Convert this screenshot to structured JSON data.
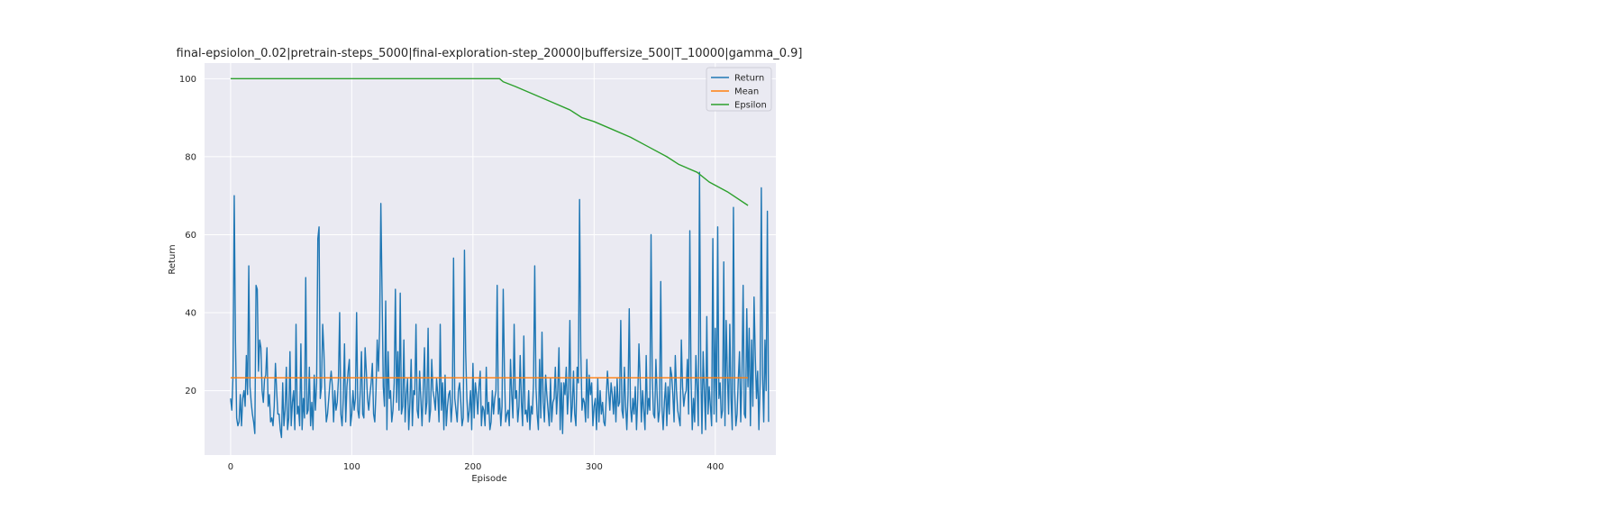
{
  "chart_data": {
    "type": "line",
    "title": "final-epsiolon_0.02|pretrain-steps_5000|final-exploration-step_20000|buffersize_500|T_10000|gamma_0.9]",
    "xlabel": "Episode",
    "ylabel": "Return",
    "xlim": [
      -21.5,
      450
    ],
    "ylim": [
      3.5,
      104
    ],
    "xticks": [
      0,
      100,
      200,
      300,
      400
    ],
    "yticks": [
      20,
      40,
      60,
      80,
      100
    ],
    "grid": true,
    "legend_position": "top-right",
    "colors": {
      "background": "#eaeaf2",
      "grid": "#ffffff",
      "return": "#1f77b4",
      "mean": "#ff7f0e",
      "epsilon": "#2ca02c"
    },
    "series": [
      {
        "name": "Return",
        "x_start": 0,
        "values": [
          18,
          15,
          24,
          70,
          33,
          13,
          11,
          12,
          19,
          11,
          18,
          20,
          16,
          29,
          19,
          52,
          21,
          17,
          14,
          12,
          9,
          47,
          46,
          25,
          33,
          31,
          20,
          17,
          23,
          24,
          31,
          16,
          19,
          12,
          13,
          11,
          16,
          27,
          20,
          14,
          14,
          10,
          8,
          22,
          11,
          15,
          26,
          10,
          13,
          30,
          11,
          17,
          20,
          10,
          37,
          14,
          16,
          11,
          32,
          10,
          18,
          13,
          49,
          14,
          15,
          26,
          11,
          17,
          10,
          24,
          15,
          22,
          59,
          62,
          18,
          21,
          37,
          30,
          19,
          12,
          14,
          18,
          22,
          25,
          21,
          12,
          20,
          15,
          17,
          23,
          40,
          14,
          11,
          18,
          32,
          12,
          21,
          25,
          28,
          11,
          14,
          20,
          15,
          18,
          40,
          15,
          13,
          20,
          30,
          14,
          13,
          31,
          25,
          18,
          15,
          19,
          22,
          27,
          14,
          12,
          20,
          33,
          25,
          36,
          68,
          45,
          21,
          16,
          43,
          10,
          30,
          18,
          20,
          12,
          15,
          22,
          46,
          17,
          30,
          15,
          45,
          14,
          16,
          33,
          12,
          19,
          23,
          10,
          17,
          28,
          11,
          20,
          19,
          37,
          15,
          13,
          25,
          18,
          11,
          20,
          31,
          14,
          17,
          36,
          12,
          15,
          28,
          20,
          18,
          15,
          23,
          19,
          12,
          37,
          15,
          22,
          10,
          24,
          11,
          16,
          19,
          20,
          12,
          17,
          54,
          18,
          15,
          12,
          20,
          22,
          17,
          11,
          13,
          56,
          30,
          18,
          12,
          15,
          20,
          10,
          27,
          13,
          22,
          19,
          14,
          21,
          25,
          11,
          16,
          15,
          11,
          26,
          14,
          17,
          10,
          12,
          20,
          14,
          18,
          20,
          47,
          14,
          18,
          11,
          16,
          46,
          25,
          12,
          14,
          15,
          11,
          28,
          19,
          13,
          37,
          18,
          20,
          12,
          16,
          29,
          17,
          11,
          34,
          14,
          15,
          12,
          20,
          10,
          16,
          14,
          22,
          52,
          21,
          14,
          10,
          28,
          13,
          35,
          17,
          12,
          24,
          19,
          15,
          11,
          23,
          12,
          17,
          18,
          26,
          14,
          20,
          31,
          10,
          22,
          9,
          22,
          19,
          26,
          14,
          20,
          38,
          12,
          16,
          25,
          14,
          11,
          26,
          22,
          69,
          30,
          15,
          18,
          17,
          12,
          28,
          13,
          24,
          19,
          22,
          11,
          16,
          18,
          10,
          23,
          12,
          20,
          14,
          17,
          12,
          11,
          18,
          25,
          20,
          15,
          22,
          19,
          14,
          21,
          12,
          23,
          16,
          17,
          38,
          15,
          13,
          26,
          16,
          10,
          19,
          41,
          16,
          12,
          18,
          14,
          21,
          10,
          18,
          32,
          23,
          12,
          20,
          15,
          10,
          29,
          14,
          18,
          15,
          60,
          23,
          14,
          13,
          28,
          19,
          12,
          15,
          48,
          16,
          10,
          17,
          22,
          11,
          21,
          14,
          26,
          24,
          19,
          12,
          29,
          20,
          15,
          13,
          11,
          33,
          21,
          16,
          19,
          20,
          28,
          14,
          61,
          23,
          10,
          18,
          12,
          29,
          21,
          11,
          76,
          26,
          9,
          30,
          20,
          10,
          39,
          14,
          21,
          16,
          11,
          59,
          14,
          36,
          12,
          62,
          18,
          22,
          13,
          15,
          53,
          11,
          38,
          24,
          14,
          37,
          18,
          10,
          67,
          20,
          11,
          14,
          23,
          30,
          12,
          24,
          47,
          14,
          13,
          41,
          21,
          36,
          11,
          33,
          16,
          44,
          29,
          18,
          25,
          10,
          22,
          72,
          24,
          12,
          33,
          20,
          66,
          12
        ]
      },
      {
        "name": "Mean",
        "x": [
          0,
          427
        ],
        "values": [
          23.3,
          23.3
        ]
      },
      {
        "name": "Epsilon",
        "x": [
          0,
          222,
          225,
          235,
          250,
          265,
          280,
          290,
          300,
          315,
          330,
          345,
          360,
          370,
          385,
          395,
          410,
          427
        ],
        "values": [
          100,
          100,
          99.2,
          98,
          96,
          94,
          92,
          90,
          89,
          87,
          85,
          82.5,
          80,
          78,
          76,
          73.5,
          71,
          67.5
        ]
      }
    ]
  }
}
